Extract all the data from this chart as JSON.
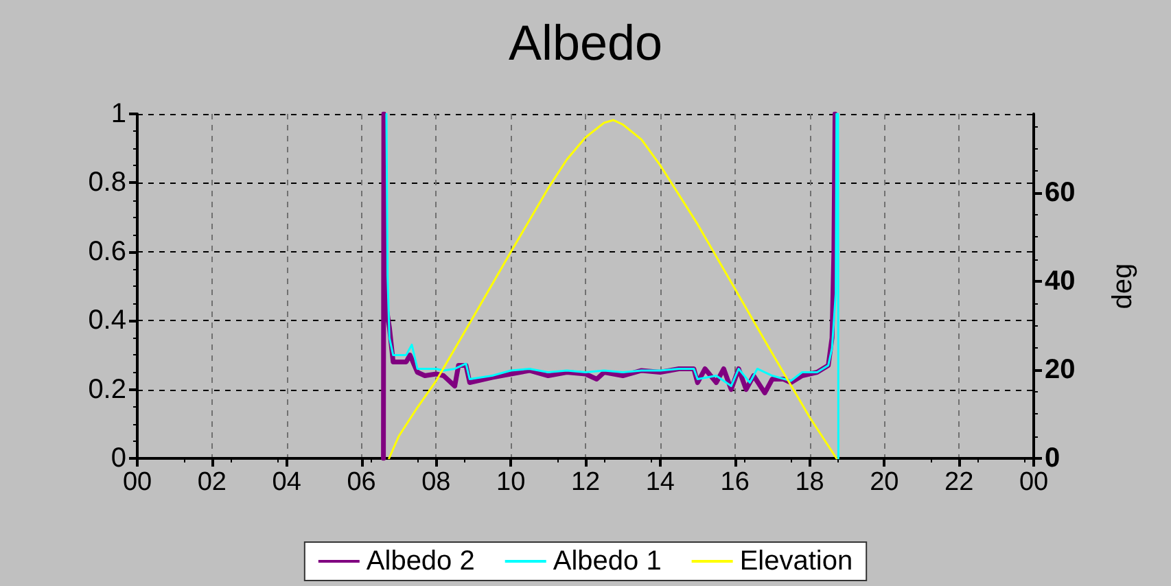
{
  "chart_data": {
    "type": "line",
    "title": "Albedo",
    "y2label": "deg",
    "xlim": [
      0,
      24
    ],
    "xticks": [
      {
        "value": 0,
        "label": "00"
      },
      {
        "value": 2,
        "label": "02"
      },
      {
        "value": 4,
        "label": "04"
      },
      {
        "value": 6,
        "label": "06"
      },
      {
        "value": 8,
        "label": "08"
      },
      {
        "value": 10,
        "label": "10"
      },
      {
        "value": 12,
        "label": "12"
      },
      {
        "value": 14,
        "label": "14"
      },
      {
        "value": 16,
        "label": "16"
      },
      {
        "value": 18,
        "label": "18"
      },
      {
        "value": 20,
        "label": "20"
      },
      {
        "value": 22,
        "label": "22"
      },
      {
        "value": 24,
        "label": "00"
      }
    ],
    "ylim": [
      0,
      1
    ],
    "yticks": [
      0,
      0.2,
      0.4,
      0.6,
      0.8,
      1
    ],
    "y2lim": [
      0,
      77.8
    ],
    "y2ticks": [
      0,
      20,
      40,
      60
    ],
    "grid": true,
    "legend": "bottom",
    "marker": "none",
    "line_style": "solid",
    "series": [
      {
        "name": "Albedo 2",
        "color": "#800080",
        "x": [
          6.59,
          6.6,
          6.65,
          6.75,
          6.85,
          7.2,
          7.3,
          7.5,
          7.7,
          8,
          8.2,
          8.5,
          8.6,
          8.8,
          8.9,
          9.5,
          10,
          10.5,
          11,
          11.5,
          12,
          12.3,
          12.5,
          13,
          13.5,
          14,
          14.5,
          14.9,
          15,
          15.2,
          15.5,
          15.7,
          15.9,
          16.1,
          16.3,
          16.5,
          16.8,
          17,
          17.3,
          17.5,
          17.8,
          18.2,
          18.5,
          18.6,
          18.65,
          18.68
        ],
        "values": [
          0,
          1,
          0.45,
          0.38,
          0.28,
          0.28,
          0.3,
          0.25,
          0.24,
          0.245,
          0.24,
          0.21,
          0.27,
          0.27,
          0.22,
          0.235,
          0.245,
          0.255,
          0.24,
          0.25,
          0.245,
          0.23,
          0.25,
          0.24,
          0.255,
          0.25,
          0.26,
          0.26,
          0.22,
          0.26,
          0.22,
          0.26,
          0.2,
          0.26,
          0.2,
          0.24,
          0.19,
          0.23,
          0.23,
          0.22,
          0.24,
          0.25,
          0.27,
          0.35,
          0.6,
          1
        ]
      },
      {
        "name": "Albedo 1",
        "color": "#00ffff",
        "x": [
          6.67,
          6.7,
          6.75,
          6.85,
          7.2,
          7.35,
          7.5,
          7.7,
          8,
          8.2,
          8.5,
          8.8,
          8.9,
          9.5,
          10,
          10.5,
          11,
          11.5,
          12,
          12.5,
          13,
          13.5,
          14,
          14.5,
          14.9,
          15,
          15.5,
          15.9,
          16.1,
          16.4,
          16.6,
          17,
          17.5,
          17.8,
          18.2,
          18.5,
          18.6,
          18.7,
          18.72,
          18.76,
          18.77
        ],
        "values": [
          1,
          0.53,
          0.35,
          0.3,
          0.3,
          0.33,
          0.26,
          0.26,
          0.26,
          0.255,
          0.26,
          0.275,
          0.23,
          0.24,
          0.255,
          0.26,
          0.25,
          0.255,
          0.25,
          0.255,
          0.25,
          0.255,
          0.255,
          0.26,
          0.26,
          0.23,
          0.24,
          0.21,
          0.26,
          0.22,
          0.26,
          0.24,
          0.225,
          0.25,
          0.25,
          0.27,
          0.32,
          0.48,
          1,
          1,
          0
        ]
      },
      {
        "name": "Elevation",
        "color": "#ffff00",
        "axis": "y2",
        "x": [
          6.74,
          7,
          7.5,
          8,
          9,
          10,
          11,
          11.5,
          12,
          12.5,
          12.75,
          13,
          13.5,
          14,
          15,
          16,
          17,
          18,
          18.72
        ],
        "values": [
          0,
          5,
          11.5,
          17.5,
          32,
          46.6,
          61,
          67.5,
          72.5,
          75.8,
          76.4,
          75.4,
          72,
          66.2,
          52.9,
          38.3,
          23.7,
          9.3,
          0
        ]
      }
    ]
  }
}
